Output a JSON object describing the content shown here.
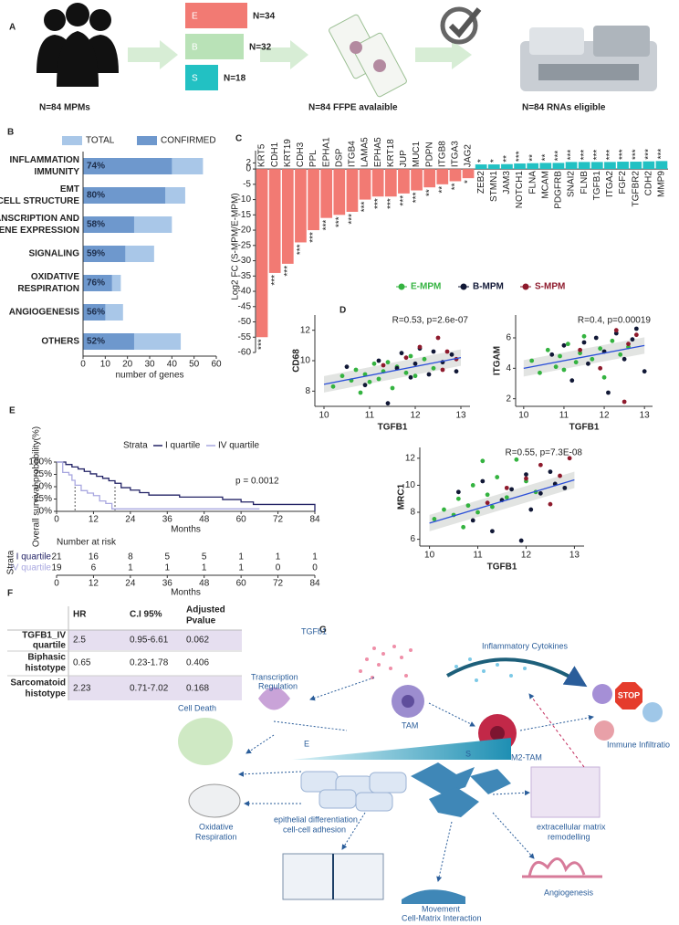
{
  "panel_labels": [
    "A",
    "B",
    "C",
    "D",
    "E",
    "F",
    "G"
  ],
  "panel_a": {
    "groups": [
      {
        "name": "E",
        "label": "N=34",
        "n": 34,
        "color": "#f27a73"
      },
      {
        "name": "B",
        "label": "N=32",
        "n": 32,
        "color": "#b9e2b7"
      },
      {
        "name": "S",
        "label": "N=18",
        "n": 18,
        "color": "#22c1c3"
      }
    ],
    "steps": [
      "N=84 MPMs",
      "N=84 FFPE avalaible",
      "N=84 RNAs eligible"
    ]
  },
  "chart_data": [
    {
      "type": "hbar",
      "categories": [
        [
          "INFLAMMATION",
          "IMMUNITY"
        ],
        [
          "EMT",
          "CELL STRUCTURE"
        ],
        [
          "TRANSCRIPTION AND",
          "GENE EXPRESSION"
        ],
        [
          "SIGNALING"
        ],
        [
          "OXIDATIVE",
          "RESPIRATION"
        ],
        [
          "ANGIOGENESIS"
        ],
        [
          "OTHERS"
        ]
      ],
      "series": [
        {
          "name": "TOTAL",
          "color": "#a9c7e8",
          "values": [
            54,
            46,
            40,
            32,
            17,
            18,
            44
          ]
        },
        {
          "name": "CONFIRMED",
          "color": "#6e98cd",
          "values": [
            40,
            37,
            23,
            19,
            13,
            10,
            23
          ]
        }
      ],
      "percent_labels": [
        "74%",
        "80%",
        "58%",
        "59%",
        "76%",
        "56%",
        "52%"
      ],
      "xlabel": "number of genes",
      "xlim": [
        0,
        60
      ],
      "xticks": [
        0,
        10,
        20,
        30,
        40,
        50,
        60
      ]
    },
    {
      "type": "bar",
      "ylabel": "Log2 FC (S-MPM/E-MPM)",
      "categories": [
        "KRT5",
        "CDH1",
        "KRT19",
        "CDH3",
        "PPL",
        "EPHA1",
        "DSP",
        "ITGB4",
        "LAMA5",
        "EPHA5",
        "KRT18",
        "JUP",
        "MUC1",
        "PDPN",
        "ITGB8",
        "ITGA3",
        "JAG2",
        "ZEB2",
        "STMN1",
        "JAM3",
        "NOTCH1",
        "FLNA",
        "MCAM",
        "PDGFRB",
        "SNAI2",
        "FLNB",
        "TGFB1",
        "ITGA2",
        "FGF2",
        "TGFBR2",
        "CDH2",
        "MMP9"
      ],
      "values": [
        -55,
        -34,
        -31,
        -24,
        -20,
        -16,
        -15,
        -14,
        -10,
        -9,
        -9,
        -8,
        -7,
        -6,
        -5,
        -4,
        -3,
        1.5,
        1.5,
        1.6,
        1.8,
        1.9,
        2,
        2,
        2.3,
        2.3,
        2.3,
        2.3,
        2.4,
        2.4,
        2.5,
        2.6
      ],
      "significance": [
        "***",
        "***",
        "***",
        "***",
        "***",
        "***",
        "***",
        "***",
        "***",
        "***",
        "***",
        "***",
        "***",
        "**",
        "**",
        "**",
        "*",
        "*",
        "*",
        "**",
        "***",
        "**",
        "**",
        "***",
        "***",
        "***",
        "***",
        "***",
        "***",
        "***",
        "***",
        "***"
      ],
      "colors": {
        "negative": "#f27a73",
        "positive": "#22c1c3"
      },
      "ylim": [
        -60,
        6
      ],
      "yticks": [
        2,
        0,
        -5,
        -10,
        -15,
        -20,
        -25,
        -30,
        -35,
        -40,
        -45,
        -50,
        -55,
        -60
      ]
    },
    {
      "type": "scatter",
      "xlabel": "TGFB1",
      "ylabel": "CD68",
      "annotation": "R=0.53, p=2.6e-07",
      "xlim": [
        9.8,
        13.2
      ],
      "xticks": [
        10,
        11,
        12,
        13
      ],
      "ylim": [
        7,
        13
      ],
      "yticks": [
        8,
        10,
        12
      ],
      "series": [
        {
          "name": "E-MPM",
          "color": "#34b340",
          "x": [
            10.2,
            10.4,
            10.6,
            10.7,
            10.8,
            10.9,
            11.0,
            11.1,
            11.2,
            11.3,
            11.4,
            11.5,
            11.6,
            11.8,
            11.9,
            12.0,
            12.2,
            12.4
          ],
          "values": [
            8.3,
            9.0,
            8.7,
            9.4,
            7.9,
            9.1,
            8.6,
            9.8,
            8.8,
            9.3,
            9.9,
            8.2,
            9.6,
            9.2,
            10.3,
            9.0,
            10.1,
            9.5
          ]
        },
        {
          "name": "B-MPM",
          "color": "#111836",
          "x": [
            10.5,
            10.9,
            11.2,
            11.4,
            11.6,
            11.7,
            11.9,
            12.0,
            12.1,
            12.3,
            12.4,
            12.6,
            12.8,
            12.9
          ],
          "values": [
            9.6,
            8.4,
            10.0,
            7.2,
            9.5,
            10.5,
            8.9,
            9.8,
            10.8,
            9.1,
            10.6,
            9.9,
            10.4,
            9.3
          ]
        },
        {
          "name": "S-MPM",
          "color": "#8e1a2c",
          "x": [
            11.3,
            11.8,
            12.1,
            12.5,
            12.6,
            12.7,
            12.9
          ],
          "values": [
            9.7,
            10.2,
            10.9,
            11.5,
            9.4,
            10.6,
            10.1
          ]
        }
      ],
      "fit": {
        "color": "#2b4fd8",
        "x": [
          10,
          13
        ],
        "values": [
          8.45,
          10.2
        ]
      }
    },
    {
      "type": "scatter",
      "xlabel": "TGFB1",
      "ylabel": "ITGAM",
      "annotation": "R=0.4, p=0.00019",
      "xlim": [
        9.8,
        13.2
      ],
      "xticks": [
        10,
        11,
        12,
        13
      ],
      "ylim": [
        1.5,
        7.5
      ],
      "yticks": [
        2,
        4,
        6
      ],
      "series": [
        {
          "color": "#34b340",
          "x": [
            10.2,
            10.4,
            10.6,
            10.8,
            10.9,
            11.0,
            11.1,
            11.3,
            11.4,
            11.5,
            11.7,
            11.9,
            12.0,
            12.2,
            12.4,
            12.6
          ],
          "values": [
            4.5,
            3.7,
            5.2,
            4.1,
            4.8,
            3.9,
            5.6,
            4.4,
            5.0,
            6.1,
            4.6,
            5.3,
            3.4,
            5.8,
            4.9,
            5.4
          ]
        },
        {
          "color": "#111836",
          "x": [
            10.7,
            11.0,
            11.2,
            11.5,
            11.6,
            11.8,
            12.0,
            12.1,
            12.3,
            12.5,
            12.7,
            12.8,
            13.0
          ],
          "values": [
            4.9,
            5.5,
            3.2,
            5.7,
            4.3,
            6.0,
            5.1,
            2.4,
            6.3,
            4.6,
            5.9,
            6.6,
            3.8
          ]
        },
        {
          "color": "#8e1a2c",
          "x": [
            11.4,
            11.9,
            12.3,
            12.5,
            12.6,
            12.8
          ],
          "values": [
            5.2,
            4.0,
            6.5,
            1.8,
            5.6,
            6.2
          ]
        }
      ],
      "fit": {
        "color": "#2b4fd8",
        "x": [
          10,
          13
        ],
        "values": [
          4.0,
          5.5
        ]
      }
    },
    {
      "type": "scatter",
      "xlabel": "TGFB1",
      "ylabel": "MRC1",
      "annotation": "R=0.55, p=7.3E-08",
      "xlim": [
        9.8,
        13.2
      ],
      "xticks": [
        10,
        11,
        12,
        13
      ],
      "ylim": [
        5.5,
        12.8
      ],
      "yticks": [
        6,
        8,
        10,
        12
      ],
      "series": [
        {
          "color": "#34b340",
          "x": [
            10.1,
            10.3,
            10.5,
            10.6,
            10.7,
            10.8,
            10.9,
            11.0,
            11.1,
            11.2,
            11.3,
            11.4,
            11.6,
            11.8,
            12.0,
            12.2
          ],
          "values": [
            7.5,
            8.2,
            7.8,
            9.0,
            6.9,
            8.5,
            10.0,
            8.0,
            11.8,
            9.3,
            8.4,
            10.6,
            9.1,
            11.9,
            10.3,
            9.5
          ]
        },
        {
          "color": "#111836",
          "x": [
            10.6,
            10.9,
            11.1,
            11.3,
            11.5,
            11.7,
            11.9,
            12.0,
            12.1,
            12.3,
            12.5,
            12.6,
            12.8
          ],
          "values": [
            9.5,
            7.4,
            10.3,
            6.6,
            8.9,
            9.7,
            5.9,
            10.8,
            8.2,
            9.4,
            11.0,
            10.1,
            9.8
          ]
        },
        {
          "color": "#8e1a2c",
          "x": [
            11.2,
            11.6,
            12.0,
            12.3,
            12.5,
            12.7,
            12.9
          ],
          "values": [
            8.7,
            9.8,
            10.5,
            11.5,
            8.6,
            10.7,
            12.0
          ]
        }
      ],
      "fit": {
        "color": "#2b4fd8",
        "x": [
          10,
          13
        ],
        "values": [
          7.2,
          10.4
        ]
      }
    },
    {
      "type": "survival",
      "legend_title": "Strata",
      "ylabel": "Overall survival probability(%)",
      "xlabel": "Months",
      "annotation": "p = 0.0012",
      "xlim": [
        0,
        84
      ],
      "xticks": [
        0,
        12,
        24,
        36,
        48,
        60,
        72,
        84
      ],
      "ylim": [
        0,
        100
      ],
      "yticks": [
        {
          "value": 0,
          "label": "0%"
        },
        {
          "value": 25,
          "label": "25%"
        },
        {
          "value": 50,
          "label": "50%"
        },
        {
          "value": 75,
          "label": "75%"
        },
        {
          "value": 100,
          "label": "100%"
        }
      ],
      "series": [
        {
          "name": "I quartile",
          "color": "#232366",
          "median": 19,
          "x": [
            0,
            3,
            5,
            7,
            9,
            11,
            13,
            15,
            17,
            19,
            21,
            24,
            27,
            30,
            34,
            40,
            45,
            48,
            54,
            57,
            60,
            64,
            84
          ],
          "values": [
            100,
            95,
            90,
            86,
            81,
            76,
            71,
            67,
            62,
            57,
            48,
            43,
            38,
            33,
            33,
            29,
            29,
            29,
            24,
            24,
            19,
            14,
            0
          ]
        },
        {
          "name": "IV quartile",
          "color": "#a9a8e0",
          "median": 6,
          "x": [
            0,
            2,
            4,
            5,
            6,
            8,
            10,
            12,
            14,
            16,
            18,
            66
          ],
          "values": [
            100,
            79,
            74,
            63,
            53,
            42,
            37,
            32,
            21,
            16,
            5,
            5
          ]
        }
      ],
      "risk_table": {
        "title": "Number at risk",
        "strata_label": "Strata",
        "xlabel": "Months",
        "rows": [
          [
            21,
            16,
            8,
            5,
            5,
            1,
            1,
            1
          ],
          [
            19,
            6,
            1,
            1,
            1,
            1,
            0,
            0
          ]
        ]
      }
    }
  ],
  "table": {
    "header": [
      "HR",
      "C.I 95%",
      [
        "Adjusted",
        "Pvalue"
      ]
    ],
    "rows": [
      [
        [
          "TGFB1_IV",
          "quartile"
        ],
        2.5,
        "0.95-6.61",
        0.062
      ],
      [
        [
          "Biphasic",
          "histotype"
        ],
        0.65,
        "0.23-1.78",
        0.406
      ],
      [
        [
          "Sarcomatoid",
          "histotype"
        ],
        2.23,
        "0.71-7.02",
        0.168
      ]
    ]
  },
  "diagram": {
    "tgf": "TGFb1",
    "cytokines": "Inflammatory Cytokines",
    "transcription": [
      "Transcription",
      "Regulation"
    ],
    "tam": "TAM",
    "m2": "M2-TAM",
    "death": "Cell Death",
    "e": "E",
    "s": "S",
    "immune": "Immune Infiltratio",
    "ecm": [
      "extracellular matrix",
      "remodelling"
    ],
    "oxidative": [
      "Oxidative",
      "Respiration"
    ],
    "epithelial": [
      "epithelial differentiation",
      "cell-cell adhesion"
    ],
    "movement": [
      "Movement",
      "Cell-Matrix Interaction"
    ],
    "angio": "Angiogenesis",
    "stop": "STOP"
  }
}
